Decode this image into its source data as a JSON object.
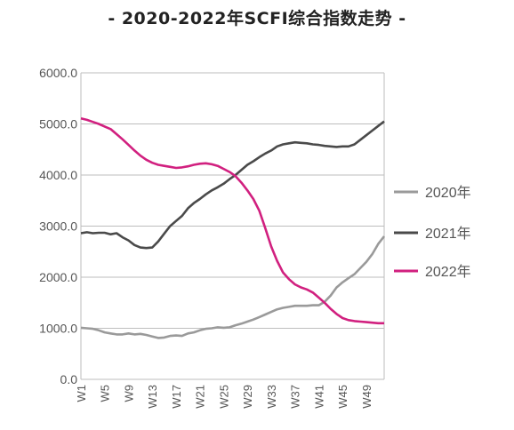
{
  "chart_data": {
    "type": "line",
    "title": "- 2020-2022年SCFI综合指数走势 -",
    "xlabel": "",
    "ylabel": "",
    "ylim": [
      0,
      6000
    ],
    "y_ticks": [
      "0.0",
      "1000.0",
      "2000.0",
      "3000.0",
      "4000.0",
      "5000.0",
      "6000.0"
    ],
    "x_range": [
      1,
      52
    ],
    "x_ticks": [
      "W1",
      "W5",
      "W9",
      "W13",
      "W17",
      "W21",
      "W25",
      "W29",
      "W33",
      "W37",
      "W41",
      "W45",
      "W49"
    ],
    "grid": "horizontal",
    "legend_position": "right",
    "series": [
      {
        "name": "2020年",
        "color": "#9a9a9a",
        "points": [
          [
            1,
            1010
          ],
          [
            2,
            1000
          ],
          [
            3,
            990
          ],
          [
            4,
            960
          ],
          [
            5,
            920
          ],
          [
            6,
            900
          ],
          [
            7,
            880
          ],
          [
            8,
            880
          ],
          [
            9,
            900
          ],
          [
            10,
            880
          ],
          [
            11,
            890
          ],
          [
            12,
            870
          ],
          [
            13,
            840
          ],
          [
            14,
            810
          ],
          [
            15,
            820
          ],
          [
            16,
            850
          ],
          [
            17,
            860
          ],
          [
            18,
            850
          ],
          [
            19,
            900
          ],
          [
            20,
            920
          ],
          [
            21,
            960
          ],
          [
            22,
            990
          ],
          [
            23,
            1000
          ],
          [
            24,
            1020
          ],
          [
            25,
            1010
          ],
          [
            26,
            1020
          ],
          [
            27,
            1060
          ],
          [
            28,
            1090
          ],
          [
            29,
            1130
          ],
          [
            30,
            1170
          ],
          [
            31,
            1220
          ],
          [
            32,
            1270
          ],
          [
            33,
            1320
          ],
          [
            34,
            1370
          ],
          [
            35,
            1400
          ],
          [
            36,
            1420
          ],
          [
            37,
            1440
          ],
          [
            38,
            1440
          ],
          [
            39,
            1440
          ],
          [
            40,
            1450
          ],
          [
            41,
            1450
          ],
          [
            42,
            1520
          ],
          [
            43,
            1640
          ],
          [
            44,
            1800
          ],
          [
            45,
            1900
          ],
          [
            46,
            1980
          ],
          [
            47,
            2060
          ],
          [
            48,
            2180
          ],
          [
            49,
            2300
          ],
          [
            50,
            2450
          ],
          [
            51,
            2650
          ],
          [
            52,
            2800
          ]
        ]
      },
      {
        "name": "2021年",
        "color": "#4a4a4a",
        "points": [
          [
            1,
            2860
          ],
          [
            2,
            2880
          ],
          [
            3,
            2860
          ],
          [
            4,
            2870
          ],
          [
            5,
            2870
          ],
          [
            6,
            2840
          ],
          [
            7,
            2860
          ],
          [
            8,
            2780
          ],
          [
            9,
            2720
          ],
          [
            10,
            2630
          ],
          [
            11,
            2580
          ],
          [
            12,
            2570
          ],
          [
            13,
            2580
          ],
          [
            14,
            2700
          ],
          [
            15,
            2850
          ],
          [
            16,
            3000
          ],
          [
            17,
            3100
          ],
          [
            18,
            3200
          ],
          [
            19,
            3350
          ],
          [
            20,
            3450
          ],
          [
            21,
            3530
          ],
          [
            22,
            3620
          ],
          [
            23,
            3700
          ],
          [
            24,
            3760
          ],
          [
            25,
            3830
          ],
          [
            26,
            3920
          ],
          [
            27,
            4000
          ],
          [
            28,
            4100
          ],
          [
            29,
            4200
          ],
          [
            30,
            4270
          ],
          [
            31,
            4350
          ],
          [
            32,
            4420
          ],
          [
            33,
            4480
          ],
          [
            34,
            4560
          ],
          [
            35,
            4600
          ],
          [
            36,
            4620
          ],
          [
            37,
            4640
          ],
          [
            38,
            4630
          ],
          [
            39,
            4620
          ],
          [
            40,
            4600
          ],
          [
            41,
            4590
          ],
          [
            42,
            4570
          ],
          [
            43,
            4560
          ],
          [
            44,
            4550
          ],
          [
            45,
            4560
          ],
          [
            46,
            4560
          ],
          [
            47,
            4600
          ],
          [
            48,
            4690
          ],
          [
            49,
            4780
          ],
          [
            50,
            4870
          ],
          [
            51,
            4960
          ],
          [
            52,
            5050
          ]
        ]
      },
      {
        "name": "2022年",
        "color": "#d1207f",
        "points": [
          [
            1,
            5110
          ],
          [
            2,
            5080
          ],
          [
            3,
            5040
          ],
          [
            4,
            5000
          ],
          [
            5,
            4950
          ],
          [
            6,
            4900
          ],
          [
            7,
            4800
          ],
          [
            8,
            4700
          ],
          [
            9,
            4590
          ],
          [
            10,
            4480
          ],
          [
            11,
            4380
          ],
          [
            12,
            4300
          ],
          [
            13,
            4240
          ],
          [
            14,
            4200
          ],
          [
            15,
            4180
          ],
          [
            16,
            4160
          ],
          [
            17,
            4140
          ],
          [
            18,
            4150
          ],
          [
            19,
            4170
          ],
          [
            20,
            4200
          ],
          [
            21,
            4220
          ],
          [
            22,
            4230
          ],
          [
            23,
            4210
          ],
          [
            24,
            4180
          ],
          [
            25,
            4120
          ],
          [
            26,
            4060
          ],
          [
            27,
            3980
          ],
          [
            28,
            3850
          ],
          [
            29,
            3700
          ],
          [
            30,
            3530
          ],
          [
            31,
            3300
          ],
          [
            32,
            2960
          ],
          [
            33,
            2600
          ],
          [
            34,
            2320
          ],
          [
            35,
            2090
          ],
          [
            36,
            1960
          ],
          [
            37,
            1860
          ],
          [
            38,
            1800
          ],
          [
            39,
            1760
          ],
          [
            40,
            1700
          ],
          [
            41,
            1600
          ],
          [
            42,
            1500
          ],
          [
            43,
            1380
          ],
          [
            44,
            1280
          ],
          [
            45,
            1200
          ],
          [
            46,
            1160
          ],
          [
            47,
            1140
          ],
          [
            48,
            1130
          ],
          [
            49,
            1120
          ],
          [
            50,
            1110
          ],
          [
            51,
            1100
          ],
          [
            52,
            1100
          ]
        ]
      }
    ]
  }
}
